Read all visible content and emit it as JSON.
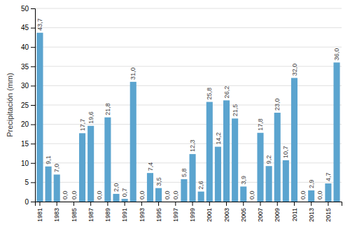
{
  "chart_data": {
    "type": "bar",
    "y_label": "Precipitación (mm)",
    "categories": [
      "1981",
      null,
      "1983",
      null,
      "1985",
      null,
      "1987",
      null,
      "1989",
      null,
      "1991",
      null,
      "1993",
      null,
      "1995",
      null,
      "1997",
      null,
      "1999",
      null,
      "2001",
      null,
      "2003",
      null,
      "2005",
      null,
      "2007",
      null,
      "2009",
      null,
      "2011",
      null,
      "2013",
      null,
      "2015",
      null
    ],
    "values": [
      43.7,
      9.1,
      7.0,
      0.0,
      0.0,
      17.7,
      19.6,
      0.0,
      21.8,
      2.0,
      0.7,
      31.0,
      0.0,
      7.4,
      3.5,
      0.0,
      0.0,
      5.8,
      12.3,
      2.6,
      25.8,
      14.2,
      26.2,
      21.5,
      3.9,
      0.0,
      17.8,
      9.2,
      23.0,
      10.7,
      32.0,
      0.0,
      2.9,
      0.0,
      4.7,
      36.0
    ],
    "value_labels": [
      "43,7",
      "9,1",
      "7,0",
      "0,0",
      "0,0",
      "17,7",
      "19,6",
      "0,0",
      "21,8",
      "2,0",
      "0,7",
      "31,0",
      "0,0",
      "7,4",
      "3,5",
      "0,0",
      "0,0",
      "5,8",
      "12,3",
      "2,6",
      "25,8",
      "14,2",
      "26,2",
      "21,5",
      "3,9",
      "0,0",
      "17,8",
      "9,2",
      "23,0",
      "10,7",
      "32,0",
      "0,0",
      "2,9",
      "0,0",
      "4,7",
      "36,0"
    ],
    "data_labels": true,
    "color": "#5ba4cf",
    "ylim": [
      0,
      50
    ],
    "yticks": [
      0,
      5,
      10,
      15,
      20,
      25,
      30,
      35,
      40,
      45,
      50
    ],
    "grid": true
  }
}
